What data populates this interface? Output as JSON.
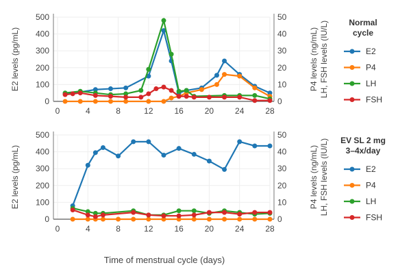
{
  "colors": {
    "E2": "#1f77b4",
    "P4": "#ff7f0e",
    "LH": "#2ca02c",
    "FSH": "#d62728"
  },
  "chart_data": [
    {
      "type": "line",
      "ylabel": "E2 levels (pg/mL)",
      "y2label_1": "P4 levels (ng/mL)",
      "y2label_2": "LH, FSH levels (IU/L)",
      "legend_title": [
        "Normal",
        "cycle"
      ],
      "legend_placement": "right",
      "xlim": [
        0,
        28
      ],
      "ylim": [
        0,
        500
      ],
      "y2lim": [
        0,
        50
      ],
      "xticks": [
        0,
        4,
        8,
        12,
        16,
        20,
        24,
        28
      ],
      "yticks": [
        0,
        100,
        200,
        300,
        400,
        500
      ],
      "y2ticks": [
        0,
        10,
        20,
        30,
        40,
        50
      ],
      "grid": true,
      "series": [
        {
          "name": "E2",
          "axis": "left",
          "x": [
            1,
            3,
            5,
            7,
            9,
            12,
            14,
            15,
            16,
            17,
            19,
            21,
            22,
            24,
            26,
            28
          ],
          "y": [
            45,
            55,
            70,
            75,
            80,
            150,
            420,
            240,
            50,
            65,
            80,
            155,
            240,
            160,
            90,
            50
          ]
        },
        {
          "name": "P4",
          "axis": "right",
          "x": [
            1,
            3,
            5,
            7,
            9,
            12,
            14,
            15,
            16,
            17,
            19,
            21,
            22,
            24,
            26,
            28
          ],
          "y": [
            0,
            0,
            0,
            0,
            0,
            0,
            0,
            2,
            3,
            5,
            7,
            10,
            16,
            15,
            8,
            3
          ]
        },
        {
          "name": "LH",
          "axis": "right",
          "x": [
            1,
            3,
            5,
            7,
            9,
            11,
            12,
            14,
            15,
            16,
            17,
            18,
            22,
            24,
            26,
            28
          ],
          "y": [
            5,
            6,
            5,
            4,
            4.5,
            6.5,
            19,
            48,
            28,
            6,
            6.5,
            3,
            3.5,
            3.5,
            3.5,
            1.5
          ]
        },
        {
          "name": "FSH",
          "axis": "right",
          "x": [
            1,
            2,
            3,
            5,
            7,
            9,
            11,
            12,
            13,
            14,
            15,
            16,
            17,
            18,
            20,
            22,
            24,
            26,
            28
          ],
          "y": [
            4,
            4.5,
            5,
            3.5,
            3,
            2.5,
            2.5,
            4.5,
            7.5,
            8.5,
            6.5,
            3,
            3,
            2.5,
            2.5,
            2.5,
            2.5,
            0.5,
            0.5
          ]
        }
      ]
    },
    {
      "type": "line",
      "ylabel": "E2 levels (pg/mL)",
      "y2label_1": "P4 levels (ng/mL)",
      "y2label_2": "LH, FSH levels (IU/L)",
      "legend_title": [
        "EV SL 2 mg",
        "3–4x/day"
      ],
      "legend_placement": "right",
      "xlim": [
        0,
        28
      ],
      "ylim": [
        0,
        500
      ],
      "y2lim": [
        0,
        50
      ],
      "xticks": [
        0,
        4,
        8,
        12,
        16,
        20,
        24,
        28
      ],
      "yticks": [
        0,
        100,
        200,
        300,
        400,
        500
      ],
      "y2ticks": [
        0,
        10,
        20,
        30,
        40,
        50
      ],
      "grid": true,
      "xlabel": "Time of menstrual cycle (days)",
      "series": [
        {
          "name": "E2",
          "axis": "left",
          "x": [
            2,
            4,
            5,
            6,
            8,
            10,
            12,
            14,
            16,
            18,
            20,
            22,
            24,
            26,
            28
          ],
          "y": [
            80,
            320,
            395,
            425,
            375,
            460,
            460,
            380,
            420,
            385,
            345,
            295,
            460,
            435,
            435
          ]
        },
        {
          "name": "P4",
          "axis": "right",
          "x": [
            2,
            4,
            5,
            6,
            8,
            10,
            12,
            14,
            16,
            18,
            20,
            22,
            24,
            26,
            28
          ],
          "y": [
            0,
            0,
            0,
            0,
            0,
            0,
            0,
            0,
            0,
            0,
            0,
            0,
            0,
            0,
            0
          ]
        },
        {
          "name": "LH",
          "axis": "right",
          "x": [
            2,
            4,
            5,
            6,
            10,
            12,
            14,
            16,
            18,
            20,
            22,
            24,
            26,
            28
          ],
          "y": [
            6.5,
            4.5,
            3.5,
            3.5,
            5,
            2.5,
            2.5,
            5,
            5,
            3.5,
            5,
            4,
            3,
            3.5
          ]
        },
        {
          "name": "FSH",
          "axis": "right",
          "x": [
            2,
            4,
            5,
            6,
            10,
            12,
            14,
            16,
            18,
            20,
            22,
            24,
            26,
            28
          ],
          "y": [
            5.5,
            2.5,
            1.5,
            2.5,
            4,
            2.5,
            2,
            2,
            2.5,
            4,
            4,
            3,
            4,
            4
          ]
        }
      ]
    }
  ]
}
